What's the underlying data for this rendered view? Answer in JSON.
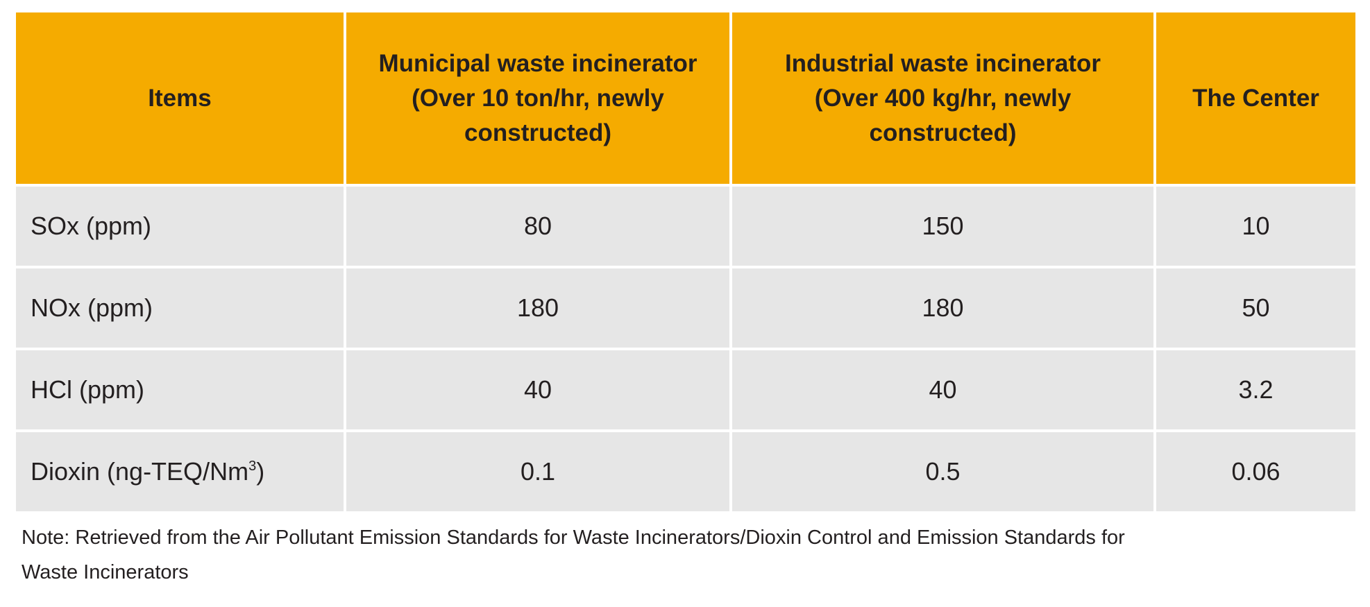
{
  "table": {
    "headers": [
      [
        "Items"
      ],
      [
        "Municipal waste incinerator",
        "(Over 10 ton/hr, newly",
        "constructed)"
      ],
      [
        "Industrial waste incinerator",
        "(Over 400 kg/hr, newly",
        "constructed)"
      ],
      [
        "The Center"
      ]
    ],
    "rows": [
      {
        "item": "SOx (ppm)",
        "unit_sup": "",
        "item_suffix": "",
        "values": [
          "80",
          "150",
          "10"
        ]
      },
      {
        "item": "NOx (ppm)",
        "unit_sup": "",
        "item_suffix": "",
        "values": [
          "180",
          "180",
          "50"
        ]
      },
      {
        "item": "HCl (ppm)",
        "unit_sup": "",
        "item_suffix": "",
        "values": [
          "40",
          "40",
          "3.2"
        ]
      },
      {
        "item": "Dioxin (ng-TEQ/Nm",
        "unit_sup": "3",
        "item_suffix": ")",
        "values": [
          "0.1",
          "0.5",
          "0.06"
        ]
      }
    ]
  },
  "note": {
    "line1": "Note: Retrieved from the Air Pollutant Emission Standards for Waste Incinerators/Dioxin Control and Emission Standards for",
    "line2": "Waste Incinerators"
  },
  "colors": {
    "header_bg": "#f5ab00",
    "cell_bg": "#e6e6e6",
    "text": "#231f20"
  }
}
